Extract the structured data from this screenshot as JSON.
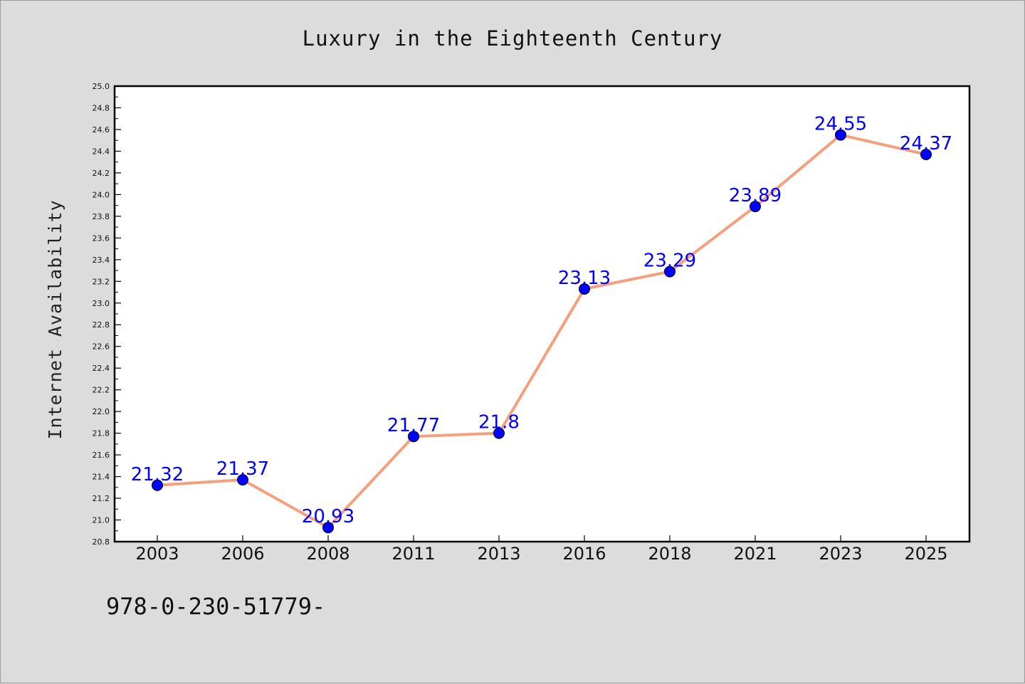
{
  "chart_data": {
    "type": "line",
    "title": "Luxury in the Eighteenth Century",
    "xlabel": "",
    "ylabel": "Internet Availability",
    "categories": [
      "2003",
      "2006",
      "2008",
      "2011",
      "2013",
      "2016",
      "2018",
      "2021",
      "2023",
      "2025"
    ],
    "series": [
      {
        "values": [
          21.32,
          21.37,
          20.93,
          21.77,
          21.8,
          23.13,
          23.29,
          23.89,
          24.55,
          24.37
        ],
        "labels": [
          "21.32",
          "21.37",
          "20.93",
          "21.77",
          "21.8",
          "23.13",
          "23.29",
          "23.89",
          "24.55",
          "24.37"
        ],
        "line_color": "#f4a07c",
        "marker_color": "#0000ff"
      }
    ],
    "ylim": [
      20.8,
      25.0
    ],
    "yticks": [
      "20.8",
      "21.0",
      "21.2",
      "21.4",
      "21.6",
      "21.8",
      "22.0",
      "22.2",
      "22.4",
      "22.6",
      "22.8",
      "23.0",
      "23.2",
      "23.4",
      "23.6",
      "23.8",
      "24.0",
      "24.2",
      "24.4",
      "24.6",
      "24.8",
      "25.0"
    ],
    "grid": false,
    "legend": "none"
  },
  "footer": {
    "code": "978-0-230-51779-"
  }
}
